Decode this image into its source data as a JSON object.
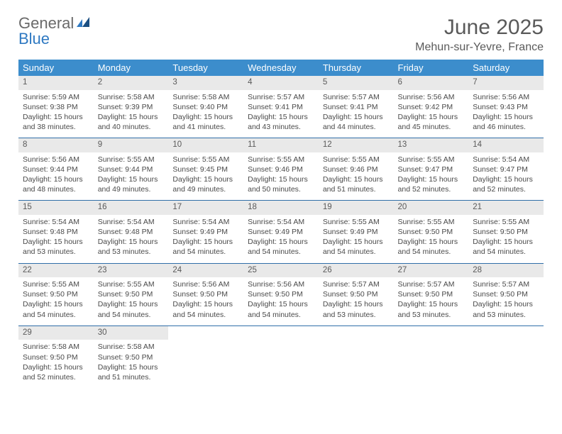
{
  "brand": {
    "part1": "General",
    "part2": "Blue"
  },
  "header": {
    "title": "June 2025",
    "location": "Mehun-sur-Yevre, France"
  },
  "colors": {
    "header_bg": "#3c8dcc",
    "header_text": "#ffffff",
    "daynum_bg": "#e9e9e9",
    "rule": "#2f6ea8",
    "brand_gray": "#6a6a6a",
    "brand_blue": "#2f79c2",
    "text": "#4a4a4a"
  },
  "day_headers": [
    "Sunday",
    "Monday",
    "Tuesday",
    "Wednesday",
    "Thursday",
    "Friday",
    "Saturday"
  ],
  "weeks": [
    [
      {
        "n": "1",
        "sunrise": "5:59 AM",
        "sunset": "9:38 PM",
        "daylight": "15 hours and 38 minutes."
      },
      {
        "n": "2",
        "sunrise": "5:58 AM",
        "sunset": "9:39 PM",
        "daylight": "15 hours and 40 minutes."
      },
      {
        "n": "3",
        "sunrise": "5:58 AM",
        "sunset": "9:40 PM",
        "daylight": "15 hours and 41 minutes."
      },
      {
        "n": "4",
        "sunrise": "5:57 AM",
        "sunset": "9:41 PM",
        "daylight": "15 hours and 43 minutes."
      },
      {
        "n": "5",
        "sunrise": "5:57 AM",
        "sunset": "9:41 PM",
        "daylight": "15 hours and 44 minutes."
      },
      {
        "n": "6",
        "sunrise": "5:56 AM",
        "sunset": "9:42 PM",
        "daylight": "15 hours and 45 minutes."
      },
      {
        "n": "7",
        "sunrise": "5:56 AM",
        "sunset": "9:43 PM",
        "daylight": "15 hours and 46 minutes."
      }
    ],
    [
      {
        "n": "8",
        "sunrise": "5:56 AM",
        "sunset": "9:44 PM",
        "daylight": "15 hours and 48 minutes."
      },
      {
        "n": "9",
        "sunrise": "5:55 AM",
        "sunset": "9:44 PM",
        "daylight": "15 hours and 49 minutes."
      },
      {
        "n": "10",
        "sunrise": "5:55 AM",
        "sunset": "9:45 PM",
        "daylight": "15 hours and 49 minutes."
      },
      {
        "n": "11",
        "sunrise": "5:55 AM",
        "sunset": "9:46 PM",
        "daylight": "15 hours and 50 minutes."
      },
      {
        "n": "12",
        "sunrise": "5:55 AM",
        "sunset": "9:46 PM",
        "daylight": "15 hours and 51 minutes."
      },
      {
        "n": "13",
        "sunrise": "5:55 AM",
        "sunset": "9:47 PM",
        "daylight": "15 hours and 52 minutes."
      },
      {
        "n": "14",
        "sunrise": "5:54 AM",
        "sunset": "9:47 PM",
        "daylight": "15 hours and 52 minutes."
      }
    ],
    [
      {
        "n": "15",
        "sunrise": "5:54 AM",
        "sunset": "9:48 PM",
        "daylight": "15 hours and 53 minutes."
      },
      {
        "n": "16",
        "sunrise": "5:54 AM",
        "sunset": "9:48 PM",
        "daylight": "15 hours and 53 minutes."
      },
      {
        "n": "17",
        "sunrise": "5:54 AM",
        "sunset": "9:49 PM",
        "daylight": "15 hours and 54 minutes."
      },
      {
        "n": "18",
        "sunrise": "5:54 AM",
        "sunset": "9:49 PM",
        "daylight": "15 hours and 54 minutes."
      },
      {
        "n": "19",
        "sunrise": "5:55 AM",
        "sunset": "9:49 PM",
        "daylight": "15 hours and 54 minutes."
      },
      {
        "n": "20",
        "sunrise": "5:55 AM",
        "sunset": "9:50 PM",
        "daylight": "15 hours and 54 minutes."
      },
      {
        "n": "21",
        "sunrise": "5:55 AM",
        "sunset": "9:50 PM",
        "daylight": "15 hours and 54 minutes."
      }
    ],
    [
      {
        "n": "22",
        "sunrise": "5:55 AM",
        "sunset": "9:50 PM",
        "daylight": "15 hours and 54 minutes."
      },
      {
        "n": "23",
        "sunrise": "5:55 AM",
        "sunset": "9:50 PM",
        "daylight": "15 hours and 54 minutes."
      },
      {
        "n": "24",
        "sunrise": "5:56 AM",
        "sunset": "9:50 PM",
        "daylight": "15 hours and 54 minutes."
      },
      {
        "n": "25",
        "sunrise": "5:56 AM",
        "sunset": "9:50 PM",
        "daylight": "15 hours and 54 minutes."
      },
      {
        "n": "26",
        "sunrise": "5:57 AM",
        "sunset": "9:50 PM",
        "daylight": "15 hours and 53 minutes."
      },
      {
        "n": "27",
        "sunrise": "5:57 AM",
        "sunset": "9:50 PM",
        "daylight": "15 hours and 53 minutes."
      },
      {
        "n": "28",
        "sunrise": "5:57 AM",
        "sunset": "9:50 PM",
        "daylight": "15 hours and 53 minutes."
      }
    ],
    [
      {
        "n": "29",
        "sunrise": "5:58 AM",
        "sunset": "9:50 PM",
        "daylight": "15 hours and 52 minutes."
      },
      {
        "n": "30",
        "sunrise": "5:58 AM",
        "sunset": "9:50 PM",
        "daylight": "15 hours and 51 minutes."
      },
      null,
      null,
      null,
      null,
      null
    ]
  ],
  "labels": {
    "sunrise": "Sunrise: ",
    "sunset": "Sunset: ",
    "daylight": "Daylight: "
  }
}
